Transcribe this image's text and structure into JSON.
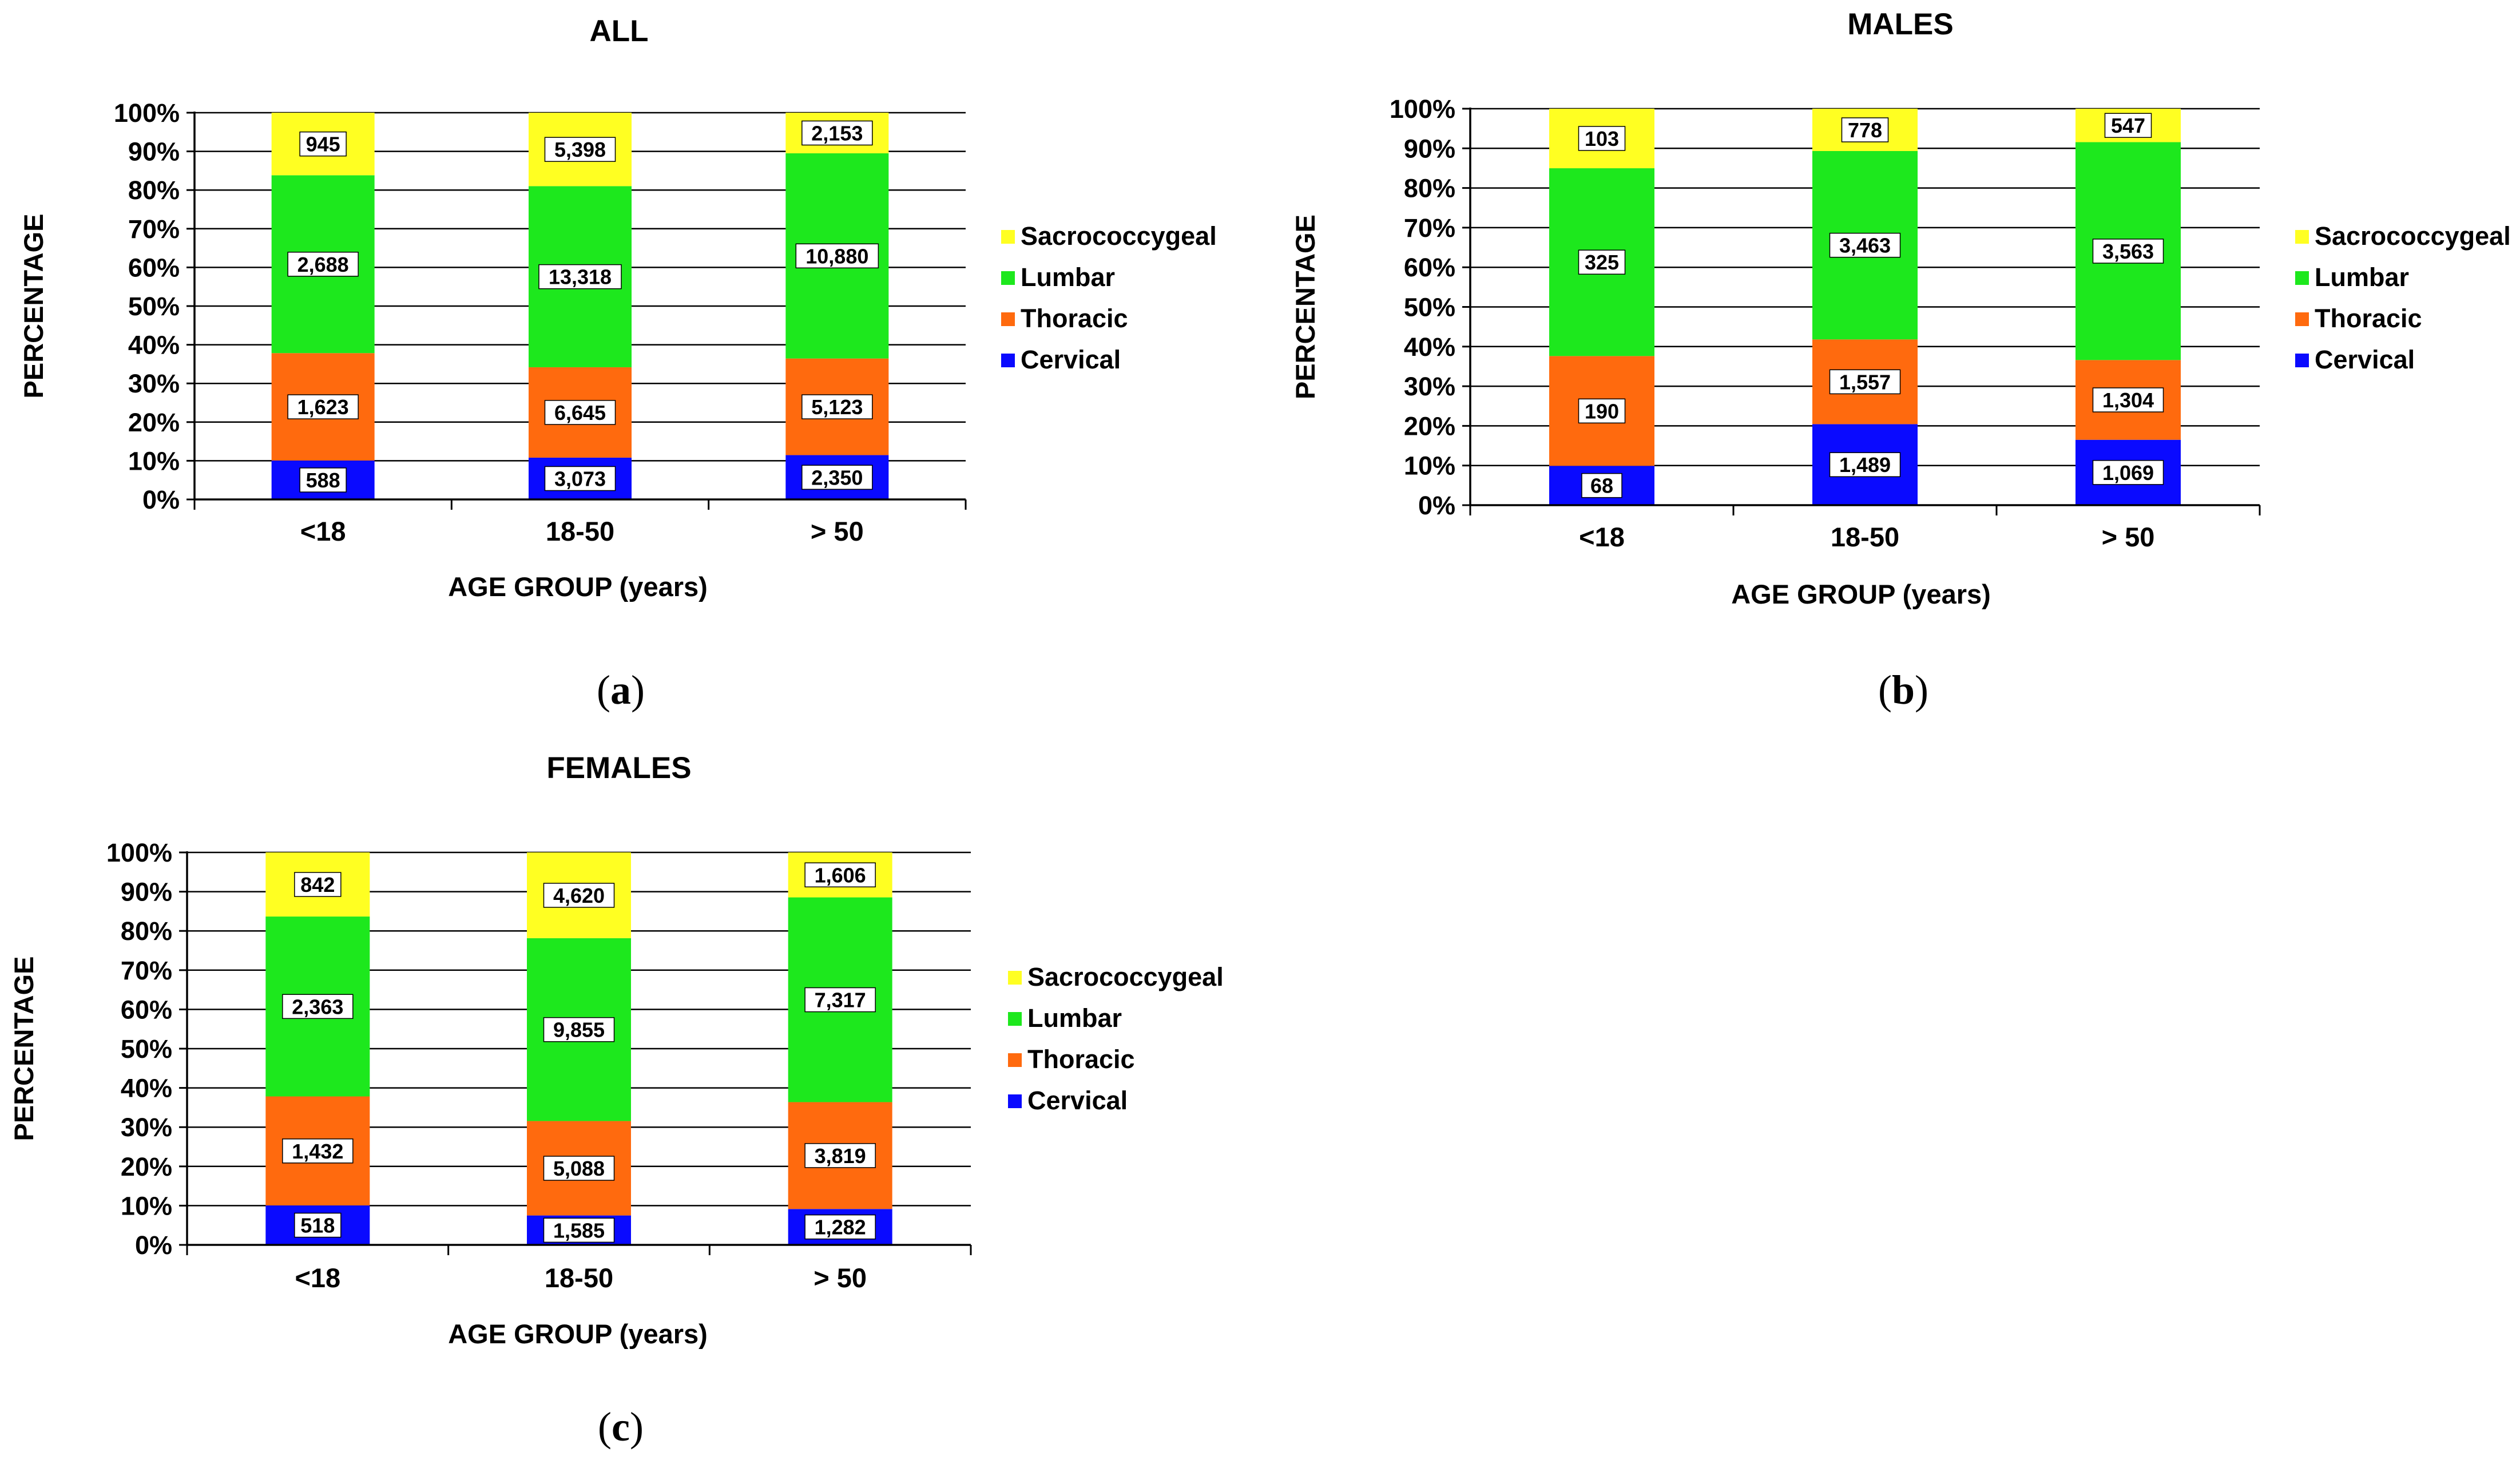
{
  "colors": {
    "Cervical": "#0a0aff",
    "Thoracic": "#ff6a0e",
    "Lumbar": "#1de81d",
    "Sacrococcygeal": "#ffff22"
  },
  "legend_order": [
    "Sacrococcygeal",
    "Lumbar",
    "Thoracic",
    "Cervical"
  ],
  "chart_data": [
    {
      "type": "bar",
      "stacked": "percent",
      "title": "ALL",
      "caption": "a",
      "xlabel": "AGE GROUP (years)",
      "ylabel": "PERCENTAGE",
      "ylim": [
        0,
        100
      ],
      "yticks": [
        "0%",
        "10%",
        "20%",
        "30%",
        "40%",
        "50%",
        "60%",
        "70%",
        "80%",
        "90%",
        "100%"
      ],
      "categories": [
        "<18",
        "18-50",
        "> 50"
      ],
      "series": [
        {
          "name": "Cervical",
          "values": [
            588,
            3073,
            2350
          ],
          "labels": [
            "588",
            "3,073",
            "2,350"
          ]
        },
        {
          "name": "Thoracic",
          "values": [
            1623,
            6645,
            5123
          ],
          "labels": [
            "1,623",
            "6,645",
            "5,123"
          ]
        },
        {
          "name": "Lumbar",
          "values": [
            2688,
            13318,
            10880
          ],
          "labels": [
            "2,688",
            "13,318",
            "10,880"
          ]
        },
        {
          "name": "Sacrococcygeal",
          "values": [
            945,
            5398,
            2153
          ],
          "labels": [
            "945",
            "5,398",
            "2,153"
          ]
        }
      ],
      "legend_position": "right"
    },
    {
      "type": "bar",
      "stacked": "percent",
      "title": "MALES",
      "caption": "b",
      "xlabel": "AGE GROUP (years)",
      "ylabel": "PERCENTAGE",
      "ylim": [
        0,
        100
      ],
      "yticks": [
        "0%",
        "10%",
        "20%",
        "30%",
        "40%",
        "50%",
        "60%",
        "70%",
        "80%",
        "90%",
        "100%"
      ],
      "categories": [
        "<18",
        "18-50",
        "> 50"
      ],
      "series": [
        {
          "name": "Cervical",
          "values": [
            68,
            1489,
            1069
          ],
          "labels": [
            "68",
            "1,489",
            "1,069"
          ]
        },
        {
          "name": "Thoracic",
          "values": [
            190,
            1557,
            1304
          ],
          "labels": [
            "190",
            "1,557",
            "1,304"
          ]
        },
        {
          "name": "Lumbar",
          "values": [
            325,
            3463,
            3563
          ],
          "labels": [
            "325",
            "3,463",
            "3,563"
          ]
        },
        {
          "name": "Sacrococcygeal",
          "values": [
            103,
            778,
            547
          ],
          "labels": [
            "103",
            "778",
            "547"
          ]
        }
      ],
      "legend_position": "right"
    },
    {
      "type": "bar",
      "stacked": "percent",
      "title": "FEMALES",
      "caption": "c",
      "xlabel": "AGE GROUP (years)",
      "ylabel": "PERCENTAGE",
      "ylim": [
        0,
        100
      ],
      "yticks": [
        "0%",
        "10%",
        "20%",
        "30%",
        "40%",
        "50%",
        "60%",
        "70%",
        "80%",
        "90%",
        "100%"
      ],
      "categories": [
        "<18",
        "18-50",
        "> 50"
      ],
      "series": [
        {
          "name": "Cervical",
          "values": [
            518,
            1585,
            1282
          ],
          "labels": [
            "518",
            "1,585",
            "1,282"
          ]
        },
        {
          "name": "Thoracic",
          "values": [
            1432,
            5088,
            3819
          ],
          "labels": [
            "1,432",
            "5,088",
            "3,819"
          ]
        },
        {
          "name": "Lumbar",
          "values": [
            2363,
            9855,
            7317
          ],
          "labels": [
            "2,363",
            "9,855",
            "7,317"
          ]
        },
        {
          "name": "Sacrococcygeal",
          "values": [
            842,
            4620,
            1606
          ],
          "labels": [
            "842",
            "4,620",
            "1,606"
          ]
        }
      ],
      "legend_position": "right"
    }
  ]
}
